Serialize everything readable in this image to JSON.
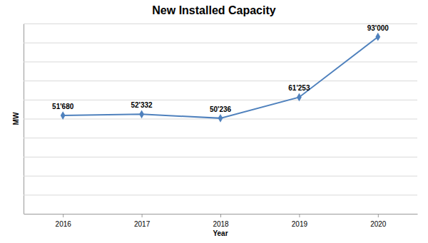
{
  "chart_data": {
    "type": "line",
    "title": "New Installed Capacity",
    "x_label": "Year",
    "y_label": "MW",
    "categories": [
      "2016",
      "2017",
      "2018",
      "2019",
      "2020"
    ],
    "values": [
      51680,
      52332,
      50236,
      61253,
      93000
    ],
    "value_labels": [
      "51'680",
      "52'332",
      "50'236",
      "61'253",
      "93'000"
    ],
    "color": "#4f81bd",
    "marker": "diamond",
    "line_style": "solid",
    "ylim": [
      0,
      100000
    ],
    "yticks": [
      0,
      10000,
      20000,
      30000,
      40000,
      50000,
      60000,
      70000,
      80000,
      90000,
      100000
    ],
    "grid": true,
    "data_labels": true,
    "tick_labels": "x"
  }
}
